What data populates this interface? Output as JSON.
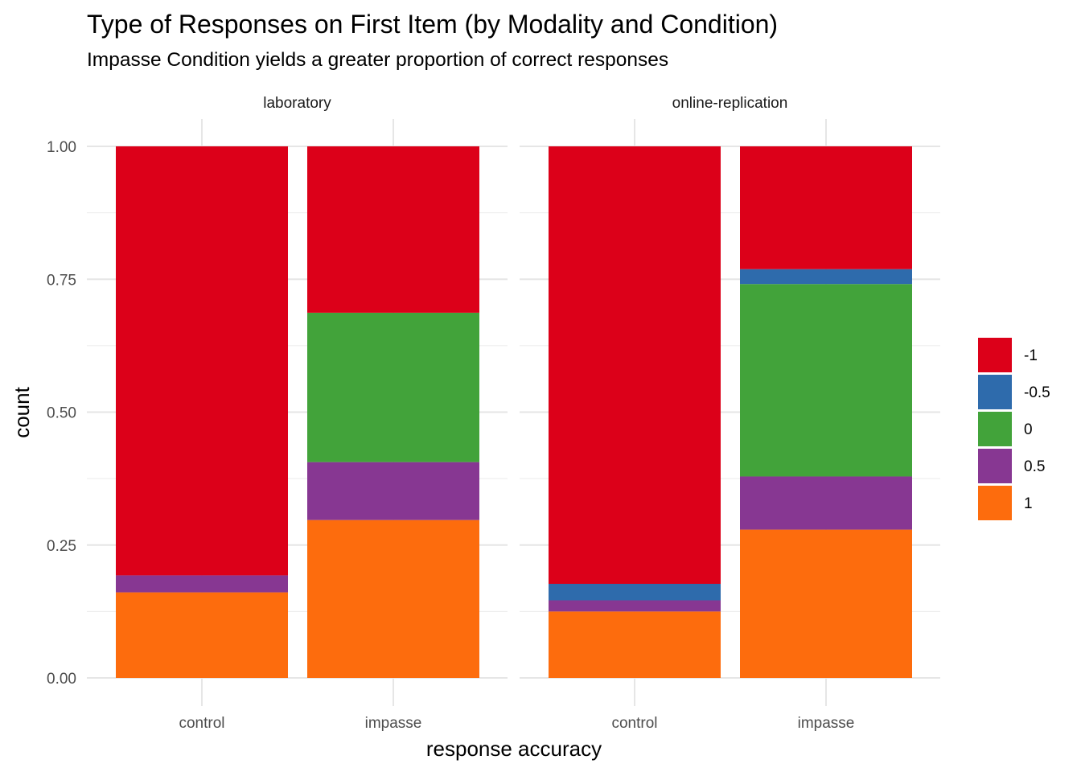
{
  "chart_data": {
    "type": "bar",
    "stacked": true,
    "title": "Type of Responses on First Item (by Modality and Condition)",
    "subtitle": "Impasse Condition yields a greater proportion of correct responses",
    "xlabel": "response accuracy",
    "ylabel": "count",
    "ylim": [
      0,
      1
    ],
    "yticks": [
      "0.00",
      "0.25",
      "0.50",
      "0.75",
      "1.00"
    ],
    "ytick_values": [
      0,
      0.25,
      0.5,
      0.75,
      1.0
    ],
    "grid": true,
    "legend_position": "right",
    "categories": [
      "control",
      "impasse"
    ],
    "legend": [
      {
        "label": "-1",
        "color": "#DC0019"
      },
      {
        "label": "-0.5",
        "color": "#2E6BAC"
      },
      {
        "label": "0",
        "color": "#42A33A"
      },
      {
        "label": "0.5",
        "color": "#873792"
      },
      {
        "label": "1",
        "color": "#FD6C0D"
      }
    ],
    "facets": [
      {
        "name": "laboratory",
        "bars": [
          {
            "category": "control",
            "segments": [
              {
                "key": "1",
                "value": 0.161
              },
              {
                "key": "0.5",
                "value": 0.032
              },
              {
                "key": "0",
                "value": 0.0
              },
              {
                "key": "-0.5",
                "value": 0.0
              },
              {
                "key": "-1",
                "value": 0.807
              }
            ]
          },
          {
            "category": "impasse",
            "segments": [
              {
                "key": "1",
                "value": 0.297
              },
              {
                "key": "0.5",
                "value": 0.109
              },
              {
                "key": "0",
                "value": 0.281
              },
              {
                "key": "-0.5",
                "value": 0.0
              },
              {
                "key": "-1",
                "value": 0.313
              }
            ]
          }
        ]
      },
      {
        "name": "online-replication",
        "bars": [
          {
            "category": "control",
            "segments": [
              {
                "key": "1",
                "value": 0.125
              },
              {
                "key": "0.5",
                "value": 0.021
              },
              {
                "key": "0",
                "value": 0.0
              },
              {
                "key": "-0.5",
                "value": 0.031
              },
              {
                "key": "-1",
                "value": 0.823
              }
            ]
          },
          {
            "category": "impasse",
            "segments": [
              {
                "key": "1",
                "value": 0.279
              },
              {
                "key": "0.5",
                "value": 0.1
              },
              {
                "key": "0",
                "value": 0.362
              },
              {
                "key": "-0.5",
                "value": 0.028
              },
              {
                "key": "-1",
                "value": 0.231
              }
            ]
          }
        ]
      }
    ]
  }
}
